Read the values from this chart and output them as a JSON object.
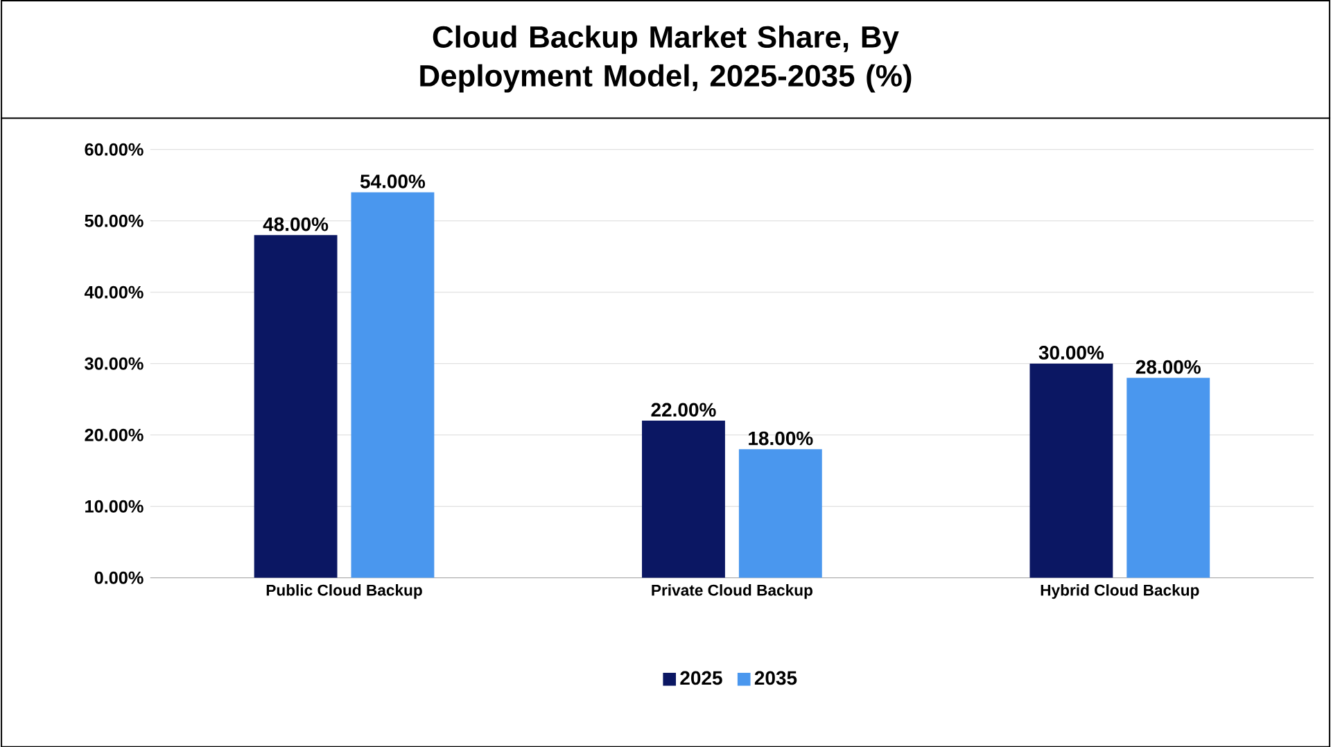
{
  "chart_data": {
    "type": "bar",
    "title": "Cloud Backup Market Share, By Deployment Model, 2025-2035 (%)",
    "categories": [
      "Public Cloud Backup",
      "Private Cloud Backup",
      "Hybrid Cloud Backup"
    ],
    "series": [
      {
        "name": "2025",
        "color": "#0b1763",
        "values": [
          48,
          22,
          30
        ],
        "value_labels": [
          "48.00%",
          "22.00%",
          "30.00%"
        ]
      },
      {
        "name": "2035",
        "color": "#4a97ee",
        "values": [
          54,
          18,
          28
        ],
        "value_labels": [
          "54.00%",
          "18.00%",
          "28.00%"
        ]
      }
    ],
    "ylim": [
      0,
      60
    ],
    "yticks": [
      {
        "value": 0,
        "label": "0.00%"
      },
      {
        "value": 10,
        "label": "10.00%"
      },
      {
        "value": 20,
        "label": "20.00%"
      },
      {
        "value": 30,
        "label": "30.00%"
      },
      {
        "value": 40,
        "label": "40.00%"
      },
      {
        "value": 50,
        "label": "50.00%"
      },
      {
        "value": 60,
        "label": "60.00%"
      }
    ],
    "grid": "y",
    "legend": "bottom"
  }
}
